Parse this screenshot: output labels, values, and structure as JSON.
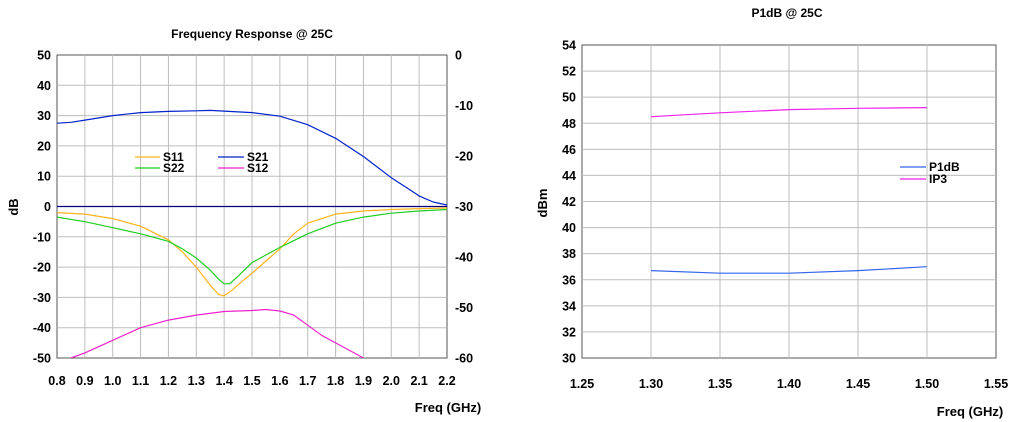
{
  "chart_data": [
    {
      "type": "line",
      "title": "Frequency Response @ 25C",
      "xlabel": "Freq (GHz)",
      "ylabel": "dB",
      "y2label": "",
      "xlim": [
        0.8,
        2.2
      ],
      "ylim": [
        -50,
        50
      ],
      "y2lim": [
        -60,
        0
      ],
      "xticks": [
        "0.8",
        "0.9",
        "1.0",
        "1.1",
        "1.2",
        "1.3",
        "1.4",
        "1.5",
        "1.6",
        "1.7",
        "1.8",
        "1.9",
        "2.0",
        "2.1",
        "2.2"
      ],
      "yticks": [
        "-50",
        "-40",
        "-30",
        "-20",
        "-10",
        "0",
        "10",
        "20",
        "30",
        "40",
        "50"
      ],
      "y2ticks": [
        "-60",
        "-50",
        "-40",
        "-30",
        "-20",
        "-10",
        "0"
      ],
      "grid": true,
      "legend": "center-left",
      "series": [
        {
          "name": "S11",
          "color": "#ffb31a",
          "axis": "left",
          "x": [
            0.8,
            0.9,
            1.0,
            1.1,
            1.2,
            1.25,
            1.3,
            1.35,
            1.38,
            1.4,
            1.43,
            1.46,
            1.5,
            1.55,
            1.6,
            1.65,
            1.7,
            1.8,
            1.9,
            2.0,
            2.1,
            2.2
          ],
          "y": [
            -2,
            -2.5,
            -4,
            -6.5,
            -11,
            -15,
            -20,
            -26,
            -29,
            -29.5,
            -27.5,
            -25,
            -22,
            -18,
            -14,
            -9,
            -5.5,
            -2.5,
            -1.5,
            -1,
            -0.7,
            -0.5
          ]
        },
        {
          "name": "S21",
          "color": "#0022cc",
          "axis": "left",
          "x": [
            0.8,
            0.85,
            0.9,
            1.0,
            1.1,
            1.2,
            1.3,
            1.35,
            1.4,
            1.5,
            1.6,
            1.7,
            1.8,
            1.9,
            2.0,
            2.05,
            2.1,
            2.15,
            2.2
          ],
          "y": [
            27.5,
            27.8,
            28.5,
            30,
            31,
            31.4,
            31.6,
            31.7,
            31.5,
            31,
            29.8,
            27,
            22.5,
            16.5,
            9.5,
            6.5,
            3.5,
            1.5,
            0.5
          ]
        },
        {
          "name": "S22",
          "color": "#22cc22",
          "axis": "left",
          "x": [
            0.8,
            0.9,
            1.0,
            1.1,
            1.2,
            1.25,
            1.3,
            1.35,
            1.38,
            1.4,
            1.42,
            1.45,
            1.5,
            1.55,
            1.6,
            1.7,
            1.8,
            1.9,
            2.0,
            2.1,
            2.2
          ],
          "y": [
            -3.5,
            -5,
            -7,
            -9,
            -11.5,
            -14,
            -17,
            -21,
            -24,
            -25.5,
            -25.5,
            -23,
            -18.5,
            -16,
            -13.5,
            -9,
            -5.5,
            -3.5,
            -2.2,
            -1.5,
            -1
          ]
        },
        {
          "name": "S12",
          "color": "#ee22cc",
          "axis": "right",
          "x": [
            0.85,
            0.9,
            1.0,
            1.1,
            1.2,
            1.3,
            1.4,
            1.5,
            1.55,
            1.6,
            1.65,
            1.7,
            1.75,
            1.8,
            1.85,
            1.9
          ],
          "y": [
            -60,
            -59,
            -56.5,
            -54,
            -52.5,
            -51.5,
            -50.8,
            -50.6,
            -50.4,
            -50.7,
            -51.5,
            -53.5,
            -55.5,
            -57,
            -58.5,
            -60
          ]
        }
      ]
    },
    {
      "type": "line",
      "title": "P1dB @ 25C",
      "xlabel": "Freq (GHz)",
      "ylabel": "dBm",
      "xlim": [
        1.25,
        1.55
      ],
      "ylim": [
        30,
        54
      ],
      "xticks": [
        "1.25",
        "1.30",
        "1.35",
        "1.40",
        "1.45",
        "1.50",
        "1.55"
      ],
      "yticks": [
        "30",
        "32",
        "34",
        "36",
        "38",
        "40",
        "42",
        "44",
        "46",
        "48",
        "50",
        "52",
        "54"
      ],
      "grid": true,
      "legend": "right",
      "series": [
        {
          "name": "P1dB",
          "color": "#3366ee",
          "x": [
            1.3,
            1.35,
            1.4,
            1.45,
            1.5
          ],
          "y": [
            36.7,
            36.5,
            36.5,
            36.7,
            37.0
          ]
        },
        {
          "name": "IP3",
          "color": "#ee22ee",
          "x": [
            1.3,
            1.35,
            1.4,
            1.45,
            1.5
          ],
          "y": [
            48.5,
            48.8,
            49.05,
            49.15,
            49.2
          ]
        }
      ]
    }
  ]
}
